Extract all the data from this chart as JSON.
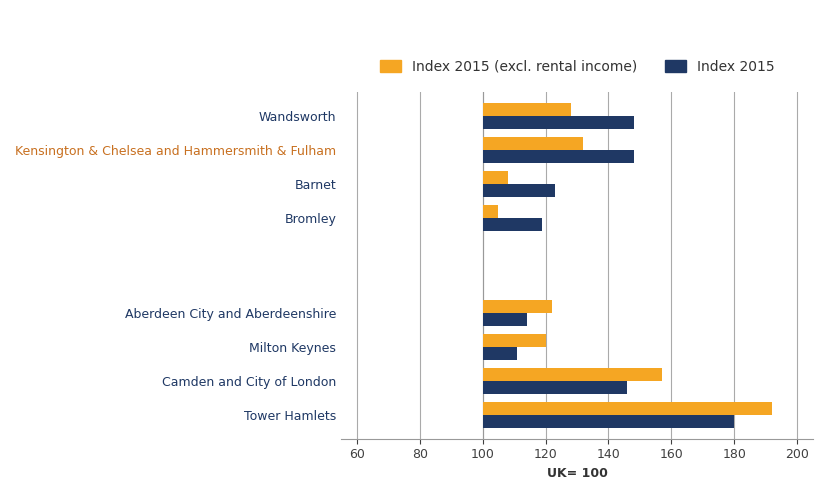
{
  "categories": [
    "Tower Hamlets",
    "Camden and City of London",
    "Milton Keynes",
    "Aberdeen City and Aberdeenshire",
    "",
    "Bromley",
    "Barnet",
    "Kensington & Chelsea and Hammersmith & Fulham",
    "Wandsworth"
  ],
  "index2015_excl": [
    192,
    157,
    120,
    122,
    null,
    105,
    108,
    132,
    128
  ],
  "index2015": [
    180,
    146,
    111,
    114,
    null,
    119,
    123,
    148,
    148
  ],
  "bar_color_orange": "#F5A623",
  "bar_color_blue": "#1F3864",
  "legend_orange": "Index 2015 (excl. rental income)",
  "legend_blue": "Index 2015",
  "xlabel": "UK= 100",
  "xlim": [
    55,
    205
  ],
  "xticks": [
    60,
    80,
    100,
    120,
    140,
    160,
    180,
    200
  ],
  "label_fontsize": 9.0,
  "tick_fontsize": 9,
  "xlabel_fontsize": 9,
  "kensington_color": "#C87020",
  "default_label_color": "#1F3864",
  "background_color": "#FFFFFF",
  "bar_height": 0.38,
  "legend_fontsize": 10
}
